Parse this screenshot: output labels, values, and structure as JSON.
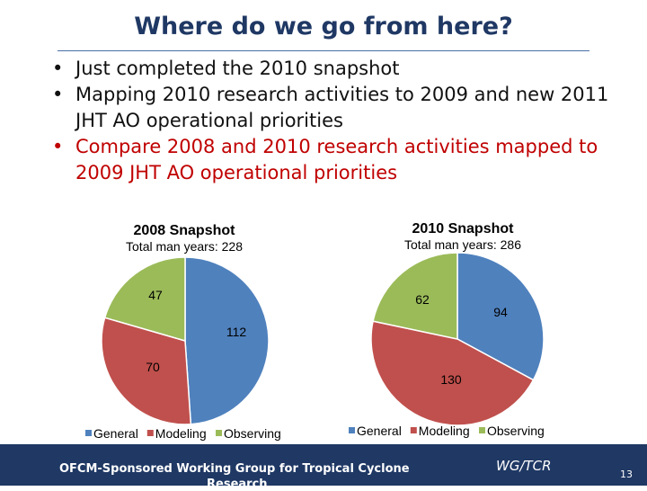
{
  "slide": {
    "title": "Where do we go from here?",
    "bullets": [
      {
        "text": "Just completed the 2010 snapshot",
        "color": "#111111"
      },
      {
        "text": "Mapping 2010 research activities to 2009 and new 2011 JHT AO operational priorities",
        "color": "#111111"
      },
      {
        "text": "Compare 2008 and 2010 research activities mapped to 2009 JHT AO operational priorities",
        "color": "#c00000"
      }
    ],
    "footer": {
      "text_line1": "OFCM-Sponsored Working Group for Tropical Cyclone",
      "text_line2": "Research",
      "org": "WG/TCR",
      "page_number": "13"
    }
  },
  "chart_data": [
    {
      "type": "pie",
      "title": "2008 Snapshot",
      "subtitle": "Total man years: 228",
      "categories": [
        "General",
        "Modeling",
        "Observing"
      ],
      "values": [
        112,
        70,
        47
      ],
      "colors": [
        "#4f81bd",
        "#c0504d",
        "#9bbb59"
      ],
      "legend": "bottom"
    },
    {
      "type": "pie",
      "title": "2010 Snapshot",
      "subtitle": "Total man years: 286",
      "categories": [
        "General",
        "Modeling",
        "Observing"
      ],
      "values": [
        94,
        130,
        62
      ],
      "colors": [
        "#4f81bd",
        "#c0504d",
        "#9bbb59"
      ],
      "legend": "bottom"
    }
  ]
}
